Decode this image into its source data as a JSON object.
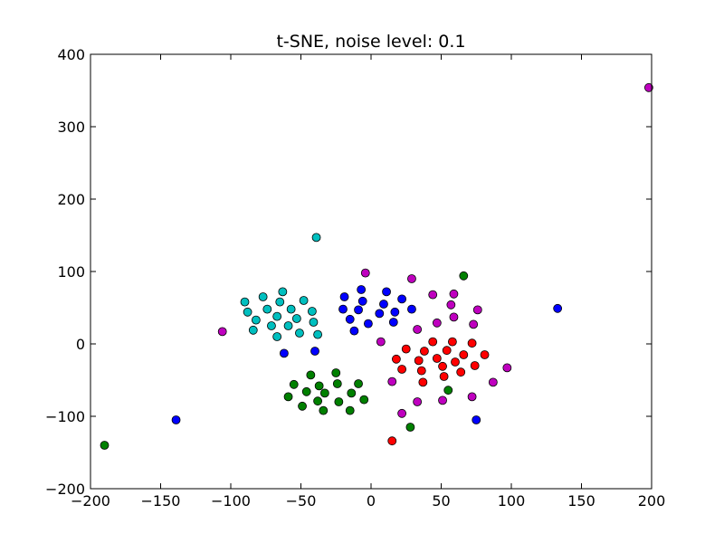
{
  "chart_data": {
    "type": "scatter",
    "title": "t-SNE, noise level: 0.1",
    "xlabel": "",
    "ylabel": "",
    "xlim": [
      -200,
      200
    ],
    "ylim": [
      -200,
      400
    ],
    "xticks": [
      -200,
      -150,
      -100,
      -50,
      0,
      50,
      100,
      150,
      200
    ],
    "yticks": [
      -200,
      -100,
      0,
      100,
      200,
      300,
      400
    ],
    "grid": false,
    "legend": "none",
    "series": [
      {
        "color": "#00bfbf",
        "points": [
          [
            -90,
            58
          ],
          [
            -88,
            44
          ],
          [
            -77,
            65
          ],
          [
            -74,
            48
          ],
          [
            -82,
            33
          ],
          [
            -84,
            19
          ],
          [
            -71,
            25
          ],
          [
            -67,
            38
          ],
          [
            -65,
            58
          ],
          [
            -63,
            72
          ],
          [
            -57,
            48
          ],
          [
            -59,
            25
          ],
          [
            -67,
            10
          ],
          [
            -53,
            35
          ],
          [
            -51,
            15
          ],
          [
            -48,
            60
          ],
          [
            -42,
            45
          ],
          [
            -41,
            30
          ],
          [
            -38,
            13
          ],
          [
            -39,
            147
          ]
        ]
      },
      {
        "color": "#0000ff",
        "points": [
          [
            -19,
            65
          ],
          [
            -20,
            48
          ],
          [
            -15,
            34
          ],
          [
            -9,
            47
          ],
          [
            -7,
            75
          ],
          [
            -6,
            59
          ],
          [
            -2,
            28
          ],
          [
            6,
            42
          ],
          [
            9,
            55
          ],
          [
            11,
            72
          ],
          [
            16,
            30
          ],
          [
            17,
            44
          ],
          [
            22,
            62
          ],
          [
            29,
            48
          ],
          [
            -12,
            18
          ],
          [
            -40,
            -10
          ],
          [
            -62,
            -13
          ],
          [
            133,
            49
          ],
          [
            -139,
            -105
          ],
          [
            75,
            -105
          ]
        ]
      },
      {
        "color": "#bf00bf",
        "points": [
          [
            -4,
            98
          ],
          [
            29,
            90
          ],
          [
            44,
            68
          ],
          [
            59,
            69
          ],
          [
            57,
            54
          ],
          [
            76,
            47
          ],
          [
            59,
            37
          ],
          [
            47,
            29
          ],
          [
            73,
            27
          ],
          [
            33,
            20
          ],
          [
            7,
            3
          ],
          [
            97,
            -33
          ],
          [
            15,
            -52
          ],
          [
            87,
            -53
          ],
          [
            33,
            -80
          ],
          [
            51,
            -78
          ],
          [
            72,
            -73
          ],
          [
            22,
            -96
          ],
          [
            -106,
            17
          ],
          [
            198,
            354
          ]
        ]
      },
      {
        "color": "#ff0000",
        "points": [
          [
            18,
            -21
          ],
          [
            25,
            -7
          ],
          [
            22,
            -35
          ],
          [
            34,
            -23
          ],
          [
            38,
            -10
          ],
          [
            44,
            3
          ],
          [
            47,
            -20
          ],
          [
            36,
            -37
          ],
          [
            51,
            -31
          ],
          [
            54,
            -9
          ],
          [
            58,
            3
          ],
          [
            60,
            -25
          ],
          [
            37,
            -53
          ],
          [
            52,
            -45
          ],
          [
            66,
            -15
          ],
          [
            64,
            -39
          ],
          [
            72,
            1
          ],
          [
            81,
            -15
          ],
          [
            74,
            -30
          ],
          [
            15,
            -134
          ]
        ]
      },
      {
        "color": "#008000",
        "points": [
          [
            -55,
            -56
          ],
          [
            -43,
            -43
          ],
          [
            -46,
            -66
          ],
          [
            -59,
            -73
          ],
          [
            -49,
            -86
          ],
          [
            -37,
            -58
          ],
          [
            -33,
            -68
          ],
          [
            -38,
            -79
          ],
          [
            -34,
            -92
          ],
          [
            -25,
            -40
          ],
          [
            -24,
            -55
          ],
          [
            -23,
            -80
          ],
          [
            -14,
            -68
          ],
          [
            -15,
            -92
          ],
          [
            -9,
            -55
          ],
          [
            -5,
            -77
          ],
          [
            28,
            -115
          ],
          [
            55,
            -64
          ],
          [
            66,
            94
          ],
          [
            -190,
            -140
          ]
        ]
      }
    ]
  }
}
